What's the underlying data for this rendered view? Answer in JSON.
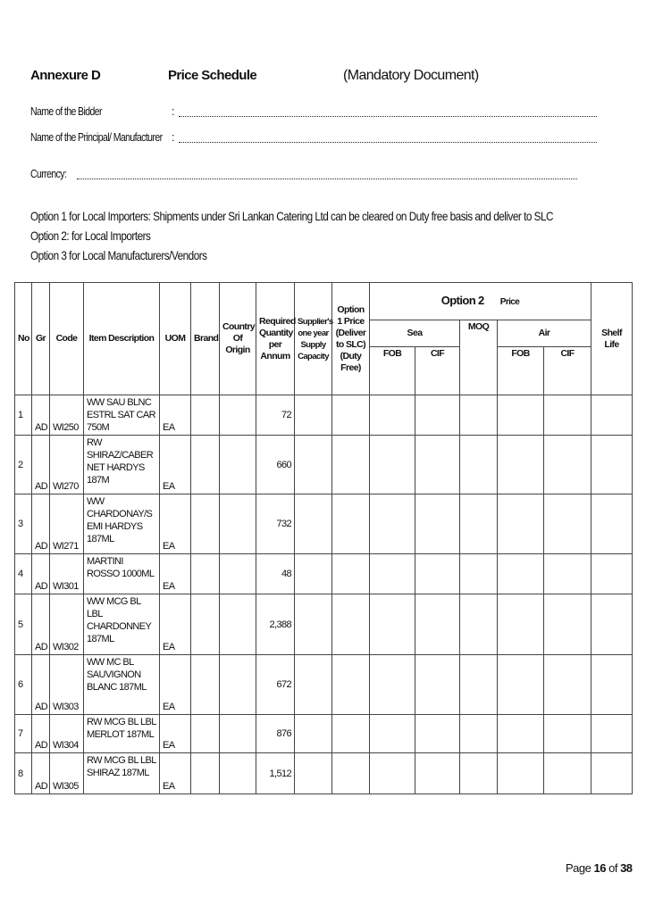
{
  "header": {
    "annex": "Annexure D",
    "title": "Price Schedule",
    "note": "(Mandatory Document)"
  },
  "fields": {
    "bidder": "Name of the Bidder",
    "principal": "Name of the Principal/ Manufacturer",
    "colon": ":",
    "currency": "Currency:"
  },
  "options": [
    "Option 1 for Local Importers: Shipments under Sri Lankan Catering Ltd can be cleared on Duty free basis and deliver to SLC",
    "Option 2: for Local Importers",
    "Option 3 for Local Manufacturers/Vendors"
  ],
  "table": {
    "headers": {
      "no": "No",
      "gr": "Gr",
      "code": "Code",
      "desc": "Item Description",
      "uom": "UOM",
      "brand": "Brand",
      "country": "Country Of Origin",
      "qty": "Required Quantity per Annum",
      "supply": "Supplier's one year Supply Capacity",
      "opt1": "Option 1 Price (Deliver to SLC) (Duty Free)",
      "opt2": "Option 2",
      "price": "Price",
      "sea": "Sea",
      "moq": "MOQ",
      "air": "Air",
      "fob": "FOB",
      "cif": "CIF",
      "shelf": "Shelf Life"
    },
    "rows": [
      {
        "no": "1",
        "gr": "AD",
        "code": "WI250",
        "desc": "WW SAU BLNC ESTRL SAT CAR 750M",
        "uom": "EA",
        "qty": "72"
      },
      {
        "no": "2",
        "gr": "AD",
        "code": "WI270",
        "desc": "RW SHIRAZ/CABERNET HARDYS 187M",
        "uom": "EA",
        "qty": "660"
      },
      {
        "no": "3",
        "gr": "AD",
        "code": "WI271",
        "desc": "WW CHARDONAY/SEMI HARDYS 187ML",
        "uom": "EA",
        "qty": "732"
      },
      {
        "no": "4",
        "gr": "AD",
        "code": "WI301",
        "desc": "MARTINI ROSSO 1000ML",
        "uom": "EA",
        "qty": "48"
      },
      {
        "no": "5",
        "gr": "AD",
        "code": "WI302",
        "desc": "WW MCG BL LBL CHARDONNEY 187ML",
        "uom": "EA",
        "qty": "2,388"
      },
      {
        "no": "6",
        "gr": "AD",
        "code": "WI303",
        "desc": "WW MC BL SAUVIGNON BLANC 187ML",
        "uom": "EA",
        "qty": "672"
      },
      {
        "no": "7",
        "gr": "AD",
        "code": "WI304",
        "desc": "RW MCG BL LBL MERLOT 187ML",
        "uom": "EA",
        "qty": "876"
      },
      {
        "no": "8",
        "gr": "AD",
        "code": "WI305",
        "desc": "RW MCG BL LBL SHIRAZ 187ML",
        "uom": "EA",
        "qty": "1,512"
      }
    ]
  },
  "footer": {
    "page_prefix": "Page",
    "page": "16",
    "of": "of",
    "total": "38"
  }
}
